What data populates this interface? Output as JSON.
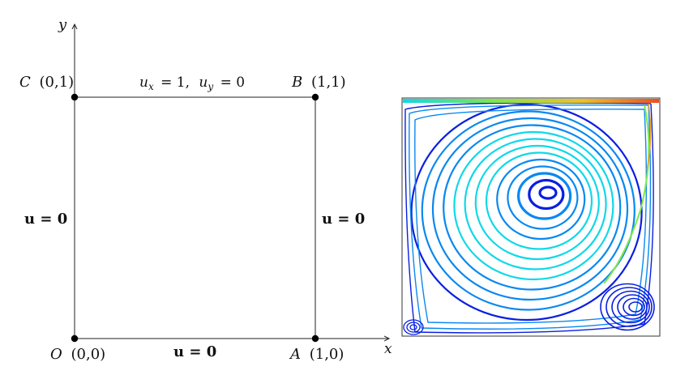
{
  "diagram": {
    "axes": {
      "x_label": "x",
      "y_label": "y"
    },
    "corners": [
      {
        "id": "O",
        "coords": "(0,0)"
      },
      {
        "id": "A",
        "coords": "(1,0)"
      },
      {
        "id": "B",
        "coords": "(1,1)"
      },
      {
        "id": "C",
        "coords": "(0,1)"
      }
    ],
    "boundary_conditions": {
      "top": {
        "ux_sym": "u",
        "ux_sub": "x",
        "ux_val": "= 1,",
        "uy_sym": "u",
        "uy_sub": "y",
        "uy_val": "= 0"
      },
      "left": "u = 0",
      "right": "u = 0",
      "bottom": "u = 0"
    }
  },
  "streamline_plot": {
    "colors": {
      "low": "#0a1fe0",
      "mid_low": "#0a88f0",
      "mid": "#10d8e8",
      "mid_high": "#7ee84a",
      "high": "#f0a020",
      "top": "#e85020"
    }
  }
}
